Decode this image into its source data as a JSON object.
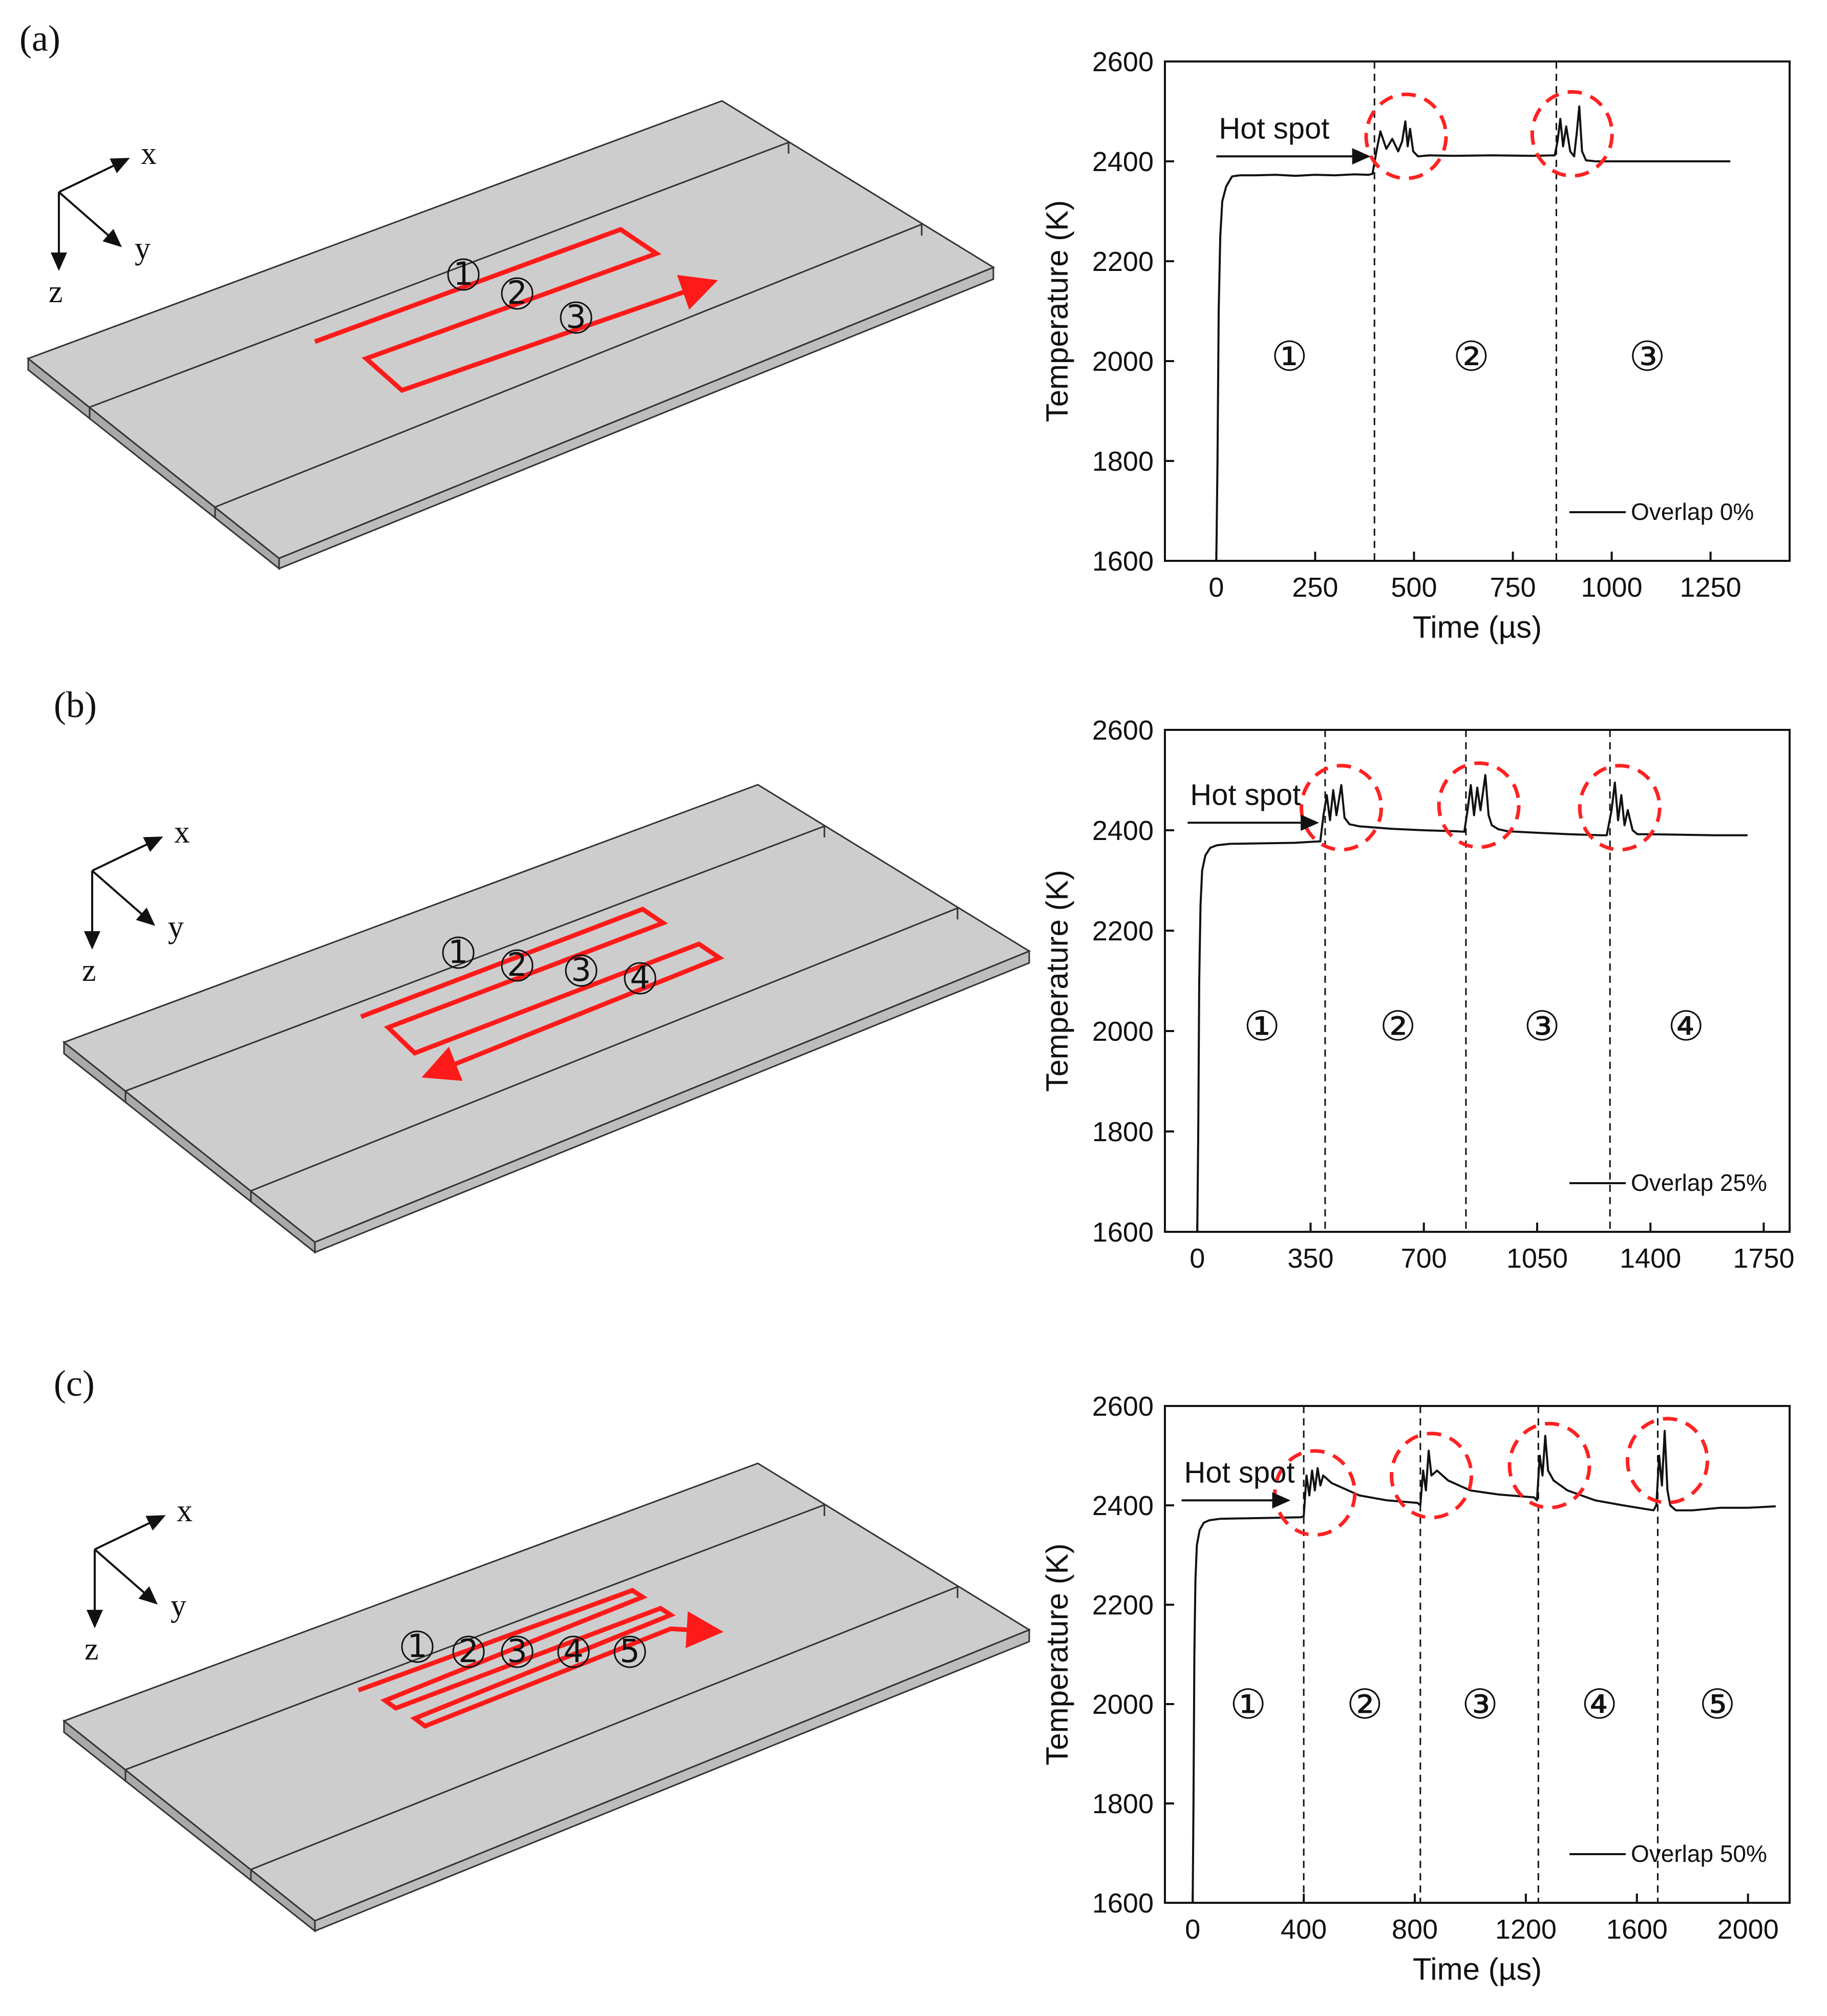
{
  "panels": [
    {
      "label": "(a)"
    },
    {
      "label": "(b)"
    },
    {
      "label": "(c)"
    }
  ],
  "axes_letters": {
    "x": "x",
    "y": "y",
    "z": "z"
  },
  "plate_colors": {
    "top": "#cdcdcd",
    "front": "#bdbdbd",
    "side": "#a9a9a9",
    "edge": "#333333",
    "path": "#ff1a1a"
  },
  "track_labels": [
    [
      "①",
      "②",
      "③"
    ],
    [
      "①",
      "②",
      "③",
      "④"
    ],
    [
      "①",
      "②",
      "③",
      "④",
      "⑤"
    ]
  ],
  "chart_data": [
    {
      "type": "line",
      "title": "",
      "xlabel": "Time (µs)",
      "ylabel": "Temperature (K)",
      "xlim": [
        -130,
        1450
      ],
      "ylim": [
        1600,
        2600
      ],
      "xticks": [
        0,
        250,
        500,
        750,
        1000,
        1250
      ],
      "yticks": [
        1600,
        1800,
        2000,
        2200,
        2400,
        2600
      ],
      "series": [
        {
          "name": "Overlap 0%",
          "x": [
            0,
            3,
            6,
            10,
            15,
            25,
            40,
            60,
            100,
            150,
            200,
            250,
            300,
            350,
            385,
            395,
            405,
            415,
            430,
            445,
            460,
            470,
            478,
            484,
            490,
            498,
            510,
            540,
            600,
            700,
            800,
            856,
            863,
            870,
            877,
            885,
            895,
            905,
            912,
            918,
            925,
            935,
            960,
            1000,
            1100,
            1200,
            1300
          ],
          "y": [
            1600,
            1800,
            2100,
            2250,
            2320,
            2350,
            2370,
            2372,
            2372,
            2373,
            2371,
            2373,
            2372,
            2374,
            2373,
            2375,
            2420,
            2460,
            2425,
            2445,
            2420,
            2440,
            2480,
            2430,
            2465,
            2420,
            2410,
            2412,
            2411,
            2412,
            2411,
            2412,
            2440,
            2485,
            2430,
            2470,
            2420,
            2410,
            2460,
            2510,
            2420,
            2402,
            2400,
            2400,
            2400,
            2400,
            2400
          ]
        }
      ],
      "dividers": [
        400,
        860
      ],
      "hot_spot_label": "Hot spot",
      "hot_spot_arrow": {
        "from_x": 0,
        "to_x": 385,
        "y": 2410
      },
      "hotspot_circles": [
        {
          "x": 480,
          "y": 2450
        },
        {
          "x": 900,
          "y": 2455
        }
      ],
      "region_labels": [
        "①",
        "②",
        "③"
      ],
      "region_x": [
        185,
        645,
        1090
      ],
      "region_y": 2010,
      "legend": "Overlap 0%"
    },
    {
      "type": "line",
      "title": "",
      "xlabel": "",
      "ylabel": "Temperature (K)",
      "xlim": [
        -100,
        1830
      ],
      "ylim": [
        1600,
        2600
      ],
      "xticks": [
        0,
        350,
        700,
        1050,
        1400,
        1750
      ],
      "yticks": [
        1600,
        1800,
        2000,
        2200,
        2400,
        2600
      ],
      "series": [
        {
          "name": "Overlap 25%",
          "x": [
            0,
            3,
            6,
            10,
            15,
            25,
            40,
            60,
            100,
            200,
            300,
            380,
            390,
            400,
            410,
            420,
            430,
            445,
            455,
            470,
            500,
            600,
            700,
            800,
            825,
            835,
            845,
            855,
            865,
            875,
            890,
            900,
            910,
            930,
            960,
            1050,
            1150,
            1250,
            1265,
            1280,
            1290,
            1300,
            1310,
            1320,
            1330,
            1345,
            1360,
            1400,
            1500,
            1600,
            1700
          ],
          "y": [
            1600,
            1800,
            2100,
            2250,
            2320,
            2350,
            2365,
            2370,
            2373,
            2374,
            2375,
            2378,
            2430,
            2470,
            2420,
            2480,
            2430,
            2490,
            2425,
            2412,
            2408,
            2403,
            2400,
            2398,
            2397,
            2440,
            2490,
            2430,
            2485,
            2440,
            2510,
            2430,
            2410,
            2402,
            2398,
            2395,
            2392,
            2390,
            2390,
            2440,
            2495,
            2420,
            2470,
            2410,
            2440,
            2400,
            2392,
            2392,
            2391,
            2390,
            2390
          ]
        }
      ],
      "dividers": [
        395,
        830,
        1275
      ],
      "hot_spot_label": "Hot spot",
      "hot_spot_arrow": {
        "from_x": -30,
        "to_x": 370,
        "y": 2415
      },
      "hotspot_circles": [
        {
          "x": 445,
          "y": 2445
        },
        {
          "x": 870,
          "y": 2450
        },
        {
          "x": 1305,
          "y": 2445
        }
      ],
      "region_labels": [
        "①",
        "②",
        "③",
        "④"
      ],
      "region_x": [
        200,
        620,
        1065,
        1510
      ],
      "region_y": 2010,
      "legend": "Overlap 25%"
    },
    {
      "type": "line",
      "title": "",
      "xlabel": "Time (µs)",
      "ylabel": "Temperature (K)",
      "xlim": [
        -100,
        2150
      ],
      "ylim": [
        1600,
        2600
      ],
      "xticks": [
        0,
        400,
        800,
        1200,
        1600,
        2000
      ],
      "yticks": [
        1600,
        1800,
        2000,
        2200,
        2400,
        2600
      ],
      "series": [
        {
          "name": "Overlap 50%",
          "x": [
            0,
            3,
            6,
            10,
            15,
            25,
            40,
            60,
            100,
            200,
            300,
            390,
            400,
            410,
            420,
            430,
            440,
            450,
            460,
            470,
            500,
            600,
            700,
            810,
            820,
            830,
            840,
            850,
            860,
            880,
            920,
            1000,
            1100,
            1230,
            1240,
            1250,
            1260,
            1270,
            1280,
            1300,
            1350,
            1450,
            1550,
            1660,
            1670,
            1680,
            1690,
            1700,
            1710,
            1720,
            1740,
            1800,
            1900,
            2000,
            2100
          ],
          "y": [
            1600,
            1800,
            2100,
            2250,
            2320,
            2350,
            2365,
            2370,
            2373,
            2374,
            2375,
            2376,
            2378,
            2460,
            2420,
            2470,
            2430,
            2475,
            2440,
            2460,
            2445,
            2420,
            2410,
            2405,
            2400,
            2470,
            2430,
            2510,
            2460,
            2470,
            2450,
            2430,
            2422,
            2416,
            2410,
            2500,
            2460,
            2540,
            2470,
            2450,
            2430,
            2410,
            2400,
            2390,
            2400,
            2500,
            2440,
            2550,
            2430,
            2400,
            2390,
            2390,
            2395,
            2395,
            2398
          ]
        }
      ],
      "dividers": [
        400,
        820,
        1245,
        1675
      ],
      "hot_spot_label": "Hot spot",
      "hot_spot_arrow": {
        "from_x": -40,
        "to_x": 345,
        "y": 2410
      },
      "hotspot_circles": [
        {
          "x": 440,
          "y": 2425
        },
        {
          "x": 860,
          "y": 2460
        },
        {
          "x": 1285,
          "y": 2480
        },
        {
          "x": 1710,
          "y": 2490
        }
      ],
      "region_labels": [
        "①",
        "②",
        "③",
        "④",
        "⑤"
      ],
      "region_x": [
        200,
        620,
        1035,
        1465,
        1890
      ],
      "region_y": 2000,
      "legend": "Overlap 50%"
    }
  ]
}
